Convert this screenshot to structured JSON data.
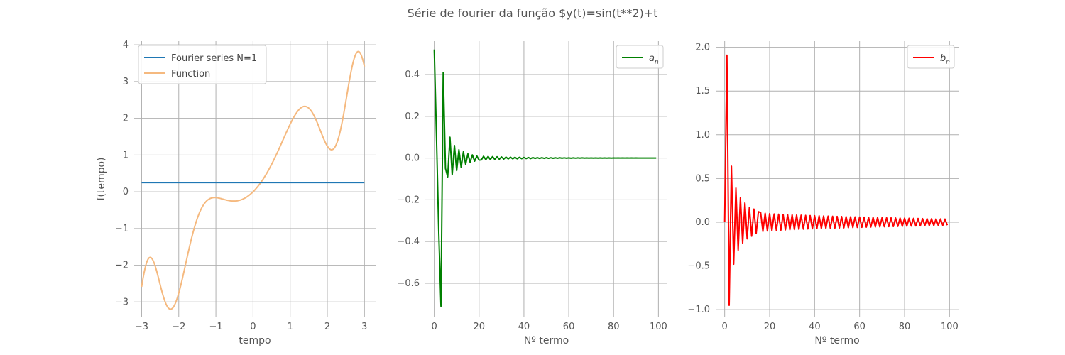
{
  "figure": {
    "suptitle": "Série de fourier da função $y(t)=sin(t**2)+t"
  },
  "chart_data": [
    {
      "type": "line",
      "xlabel": "tempo",
      "ylabel": "f(tempo)",
      "xlim": [
        -3.2,
        3.3
      ],
      "ylim": [
        -3.4,
        4.1
      ],
      "xticks": [
        -3,
        -2,
        -1,
        0,
        1,
        2,
        3
      ],
      "xtick_labels": [
        "−3",
        "−2",
        "−1",
        "0",
        "1",
        "2",
        "3"
      ],
      "yticks": [
        -3,
        -2,
        -1,
        0,
        1,
        2,
        3,
        4
      ],
      "ytick_labels": [
        "−3",
        "−2",
        "−1",
        "0",
        "1",
        "2",
        "3",
        "4"
      ],
      "grid": true,
      "legend_position": "upper-left",
      "series": [
        {
          "name": "Fourier series N=1",
          "color": "#1f77b4",
          "kind": "constant",
          "x_range": [
            -3,
            3
          ],
          "y": 0.25
        },
        {
          "name": "Function",
          "color": "#f5b97f",
          "kind": "function",
          "expression": "sin(t**2)+t",
          "x_range": [
            -3,
            3
          ]
        }
      ]
    },
    {
      "type": "line",
      "xlabel": "Nº termo",
      "ylabel": "",
      "xlim": [
        -4,
        104
      ],
      "ylim": [
        -0.76,
        0.56
      ],
      "xticks": [
        0,
        20,
        40,
        60,
        80,
        100
      ],
      "xtick_labels": [
        "0",
        "20",
        "40",
        "60",
        "80",
        "100"
      ],
      "yticks": [
        -0.6,
        -0.4,
        -0.2,
        0.0,
        0.2,
        0.4
      ],
      "ytick_labels": [
        "−0.6",
        "−0.4",
        "−0.2",
        "0.0",
        "0.2",
        "0.4"
      ],
      "grid": true,
      "legend_position": "upper-right",
      "series": [
        {
          "name": "a_n",
          "legend_label": "a",
          "legend_sub": "n",
          "color": "#008000",
          "x": [
            0,
            1,
            2,
            3,
            4,
            5,
            6,
            7,
            8,
            9,
            10,
            11,
            12,
            13,
            14,
            15,
            16,
            17,
            18,
            19,
            20
          ],
          "y": [
            0.52,
            0.1,
            -0.35,
            -0.71,
            0.41,
            -0.05,
            -0.09,
            0.1,
            -0.08,
            0.06,
            -0.06,
            0.04,
            -0.045,
            0.03,
            -0.03,
            0.02,
            -0.02,
            0.015,
            -0.015,
            0.01,
            -0.01
          ],
          "tail": {
            "from": 21,
            "to": 99,
            "amp_start": 0.009,
            "decay": 0.06,
            "alternating": true
          }
        }
      ]
    },
    {
      "type": "line",
      "xlabel": "Nº termo",
      "ylabel": "",
      "xlim": [
        -4,
        104
      ],
      "ylim": [
        -1.08,
        2.07
      ],
      "xticks": [
        0,
        20,
        40,
        60,
        80,
        100
      ],
      "xtick_labels": [
        "0",
        "20",
        "40",
        "60",
        "80",
        "100"
      ],
      "yticks": [
        -1.0,
        -0.5,
        0.0,
        0.5,
        1.0,
        1.5,
        2.0
      ],
      "ytick_labels": [
        "−1.0",
        "−0.5",
        "0.0",
        "0.5",
        "1.0",
        "1.5",
        "2.0"
      ],
      "grid": true,
      "legend_position": "upper-right",
      "series": [
        {
          "name": "b_n",
          "legend_label": "b",
          "legend_sub": "n",
          "color": "#ff0000",
          "x": [
            0,
            1,
            2,
            3,
            4,
            5,
            6,
            7,
            8,
            9,
            10,
            11,
            12,
            13,
            14,
            15
          ],
          "y": [
            0.0,
            1.91,
            -0.95,
            0.64,
            -0.48,
            0.39,
            -0.32,
            0.28,
            -0.24,
            0.22,
            -0.19,
            0.17,
            -0.16,
            0.15,
            -0.13,
            0.12
          ],
          "tail": {
            "from": 16,
            "to": 99,
            "amp_start": 0.11,
            "amp_end": 0.035,
            "alternating": true
          }
        }
      ]
    }
  ]
}
